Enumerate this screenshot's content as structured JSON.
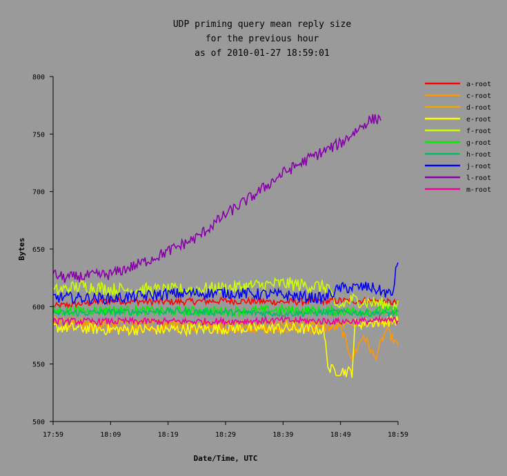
{
  "chart_data": {
    "type": "line",
    "title": [
      "UDP priming query mean reply size",
      "for the previous hour",
      "as of 2010-01-27 18:59:01"
    ],
    "xlabel": "Date/Time, UTC",
    "ylabel": "Bytes",
    "ylim": [
      500,
      800
    ],
    "yticks": [
      500,
      550,
      600,
      650,
      700,
      750,
      800
    ],
    "xrange_minutes": [
      0,
      60
    ],
    "xticks": [
      {
        "label": "17:59",
        "minute": 0
      },
      {
        "label": "18:09",
        "minute": 10
      },
      {
        "label": "18:19",
        "minute": 20
      },
      {
        "label": "18:29",
        "minute": 30
      },
      {
        "label": "18:39",
        "minute": 40
      },
      {
        "label": "18:49",
        "minute": 50
      },
      {
        "label": "18:59",
        "minute": 60
      }
    ],
    "legend_position": "right",
    "series": [
      {
        "name": "a-root",
        "color": "#ff0000",
        "minutes": [
          0,
          10,
          20,
          30,
          40,
          50,
          55,
          60
        ],
        "values": [
          600,
          605,
          604,
          605,
          604,
          605,
          605,
          603
        ],
        "noise": 3
      },
      {
        "name": "c-root",
        "color": "#ff9900",
        "minutes": [
          0,
          10,
          20,
          30,
          40,
          45,
          50,
          52,
          54,
          56,
          58,
          60
        ],
        "values": [
          585,
          582,
          582,
          580,
          581,
          580,
          582,
          555,
          575,
          555,
          580,
          565
        ],
        "noise": 4
      },
      {
        "name": "d-root",
        "color": "#f0a800",
        "minutes": [
          0,
          10,
          20,
          30,
          40,
          50,
          60
        ],
        "values": [
          588,
          586,
          586,
          585,
          586,
          585,
          587
        ],
        "noise": 3
      },
      {
        "name": "e-root",
        "color": "#ffff00",
        "minutes": [
          0,
          10,
          20,
          30,
          40,
          47,
          48,
          52,
          52.5,
          60
        ],
        "values": [
          582,
          580,
          580,
          581,
          581,
          580,
          545,
          543,
          585,
          588
        ],
        "noise": 5
      },
      {
        "name": "f-root",
        "color": "#ccff00",
        "minutes": [
          0,
          5,
          10,
          20,
          30,
          40,
          45,
          48,
          49,
          52,
          60
        ],
        "values": [
          613,
          618,
          615,
          614,
          616,
          620,
          618,
          617,
          598,
          606,
          600
        ],
        "noise": 6
      },
      {
        "name": "g-root",
        "color": "#00ee00",
        "minutes": [
          0,
          10,
          20,
          30,
          40,
          50,
          60
        ],
        "values": [
          596,
          597,
          596,
          596,
          597,
          596,
          596
        ],
        "noise": 4
      },
      {
        "name": "h-root",
        "color": "#00bb66",
        "minutes": [
          0,
          10,
          20,
          30,
          40,
          50,
          60
        ],
        "values": [
          594,
          595,
          596,
          595,
          594,
          595,
          594
        ],
        "noise": 3
      },
      {
        "name": "j-root",
        "color": "#0000ff",
        "minutes": [
          0,
          10,
          20,
          30,
          40,
          47,
          50,
          55,
          59,
          60
        ],
        "values": [
          608,
          607,
          611,
          612,
          610,
          607,
          616,
          617,
          610,
          642
        ],
        "noise": 5
      },
      {
        "name": "l-root",
        "color": "#8800aa",
        "minutes": [
          0,
          2,
          10,
          15,
          20,
          25,
          30,
          35,
          40,
          45,
          50,
          55,
          57
        ],
        "values": [
          628,
          625,
          628,
          637,
          648,
          660,
          680,
          697,
          716,
          730,
          742,
          762,
          764
        ],
        "noise": 5
      },
      {
        "name": "m-root",
        "color": "#ee0099",
        "minutes": [
          0,
          10,
          20,
          30,
          40,
          50,
          60
        ],
        "values": [
          587,
          587,
          587,
          587,
          588,
          587,
          588
        ],
        "noise": 3
      }
    ]
  }
}
